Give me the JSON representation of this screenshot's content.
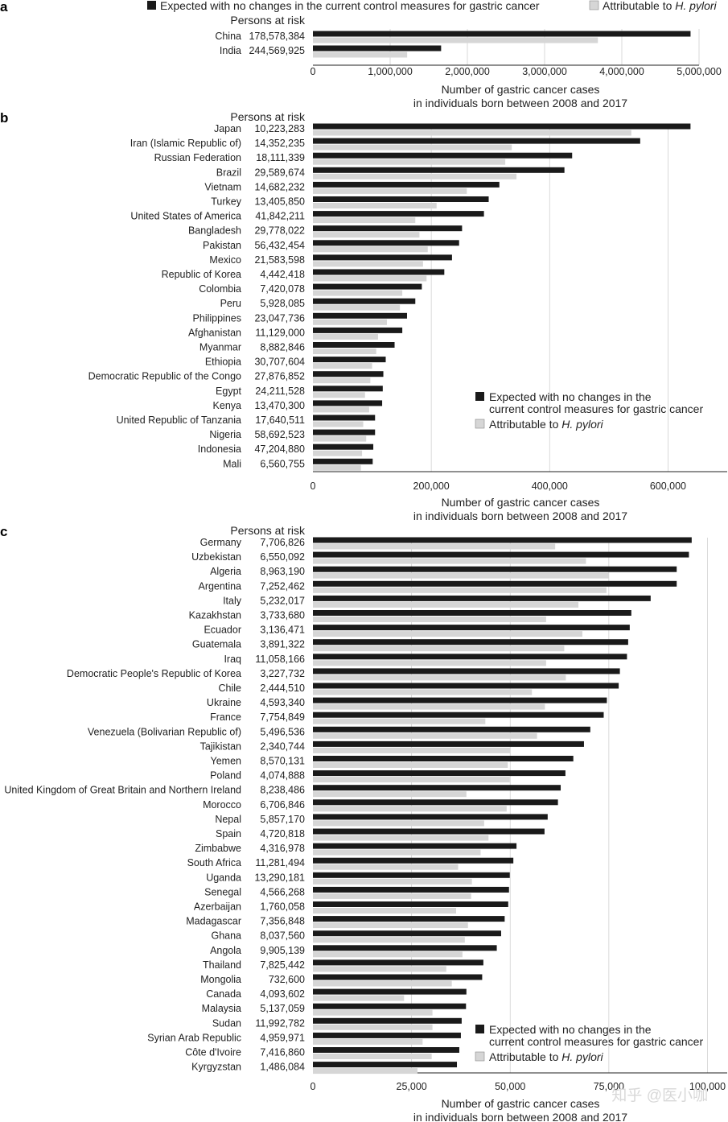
{
  "colors": {
    "expected": "#1a1a1a",
    "hpylori": "#d6d6d6",
    "grid": "#d0d0d0",
    "axis": "#222222"
  },
  "legend": {
    "expected_line1": "Expected with no changes in the",
    "expected_line2": "current control measures for gastric cancer",
    "expected_full": "Expected with no changes in the current control measures for gastric cancer",
    "hpylori_prefix": "Attributable to ",
    "hpylori_italic": "H. pylori"
  },
  "persons_at_risk_title": "Persons at risk",
  "xlabel_line1": "Number of gastric cancer cases",
  "xlabel_line2": "in individuals born between 2008 and 2017",
  "watermark": "知乎 @医小咖",
  "chart_data": [
    {
      "panel": "a",
      "type": "bar",
      "orientation": "horizontal",
      "categories": [
        "China",
        "India"
      ],
      "persons_at_risk": [
        "178,578,384",
        "244,569,925"
      ],
      "series": [
        {
          "name": "Expected with no changes in the current control measures for gastric cancer",
          "values": [
            4890000,
            1660000
          ]
        },
        {
          "name": "Attributable to H. pylori",
          "values": [
            3690000,
            1220000
          ]
        }
      ],
      "xlim": [
        0,
        5000000
      ],
      "xticks": [
        0,
        1000000,
        2000000,
        3000000,
        4000000,
        5000000
      ],
      "xtick_labels": [
        "0",
        "1,000,000",
        "2,000,000",
        "3,000,000",
        "4,000,000",
        "5,000,000"
      ],
      "xlabel": "Number of gastric cancer cases in individuals born between 2008 and 2017",
      "grid": true,
      "legend": "top"
    },
    {
      "panel": "b",
      "type": "bar",
      "orientation": "horizontal",
      "categories": [
        "Japan",
        "Iran (Islamic Republic of)",
        "Russian Federation",
        "Brazil",
        "Vietnam",
        "Turkey",
        "United States of America",
        "Bangladesh",
        "Pakistan",
        "Mexico",
        "Republic of Korea",
        "Colombia",
        "Peru",
        "Philippines",
        "Afghanistan",
        "Myanmar",
        "Ethiopia",
        "Democratic Republic of the Congo",
        "Egypt",
        "Kenya",
        "United Republic of Tanzania",
        "Nigeria",
        "Indonesia",
        "Mali"
      ],
      "persons_at_risk": [
        "10,223,283",
        "14,352,235",
        "18,111,339",
        "29,589,674",
        "14,682,232",
        "13,405,850",
        "41,842,211",
        "29,778,022",
        "56,432,454",
        "21,583,598",
        "4,442,418",
        "7,420,078",
        "5,928,085",
        "23,047,736",
        "11,129,000",
        "8,882,846",
        "30,707,604",
        "27,876,852",
        "24,211,528",
        "13,470,300",
        "17,640,511",
        "58,692,523",
        "47,204,880",
        "6,560,755"
      ],
      "series": [
        {
          "name": "Expected with no changes in the current control measures for gastric cancer",
          "values": [
            638000,
            553000,
            438000,
            425000,
            315000,
            297000,
            289000,
            252000,
            247000,
            235000,
            222000,
            184000,
            173000,
            159000,
            151000,
            138000,
            123000,
            119000,
            118000,
            117000,
            105000,
            105000,
            102000,
            101000
          ]
        },
        {
          "name": "Attributable to H. pylori",
          "values": [
            538000,
            336000,
            325000,
            344000,
            260000,
            209000,
            173000,
            180000,
            194000,
            186000,
            192000,
            151000,
            147000,
            125000,
            110000,
            107000,
            100000,
            97000,
            88000,
            95000,
            85000,
            90000,
            83000,
            81000
          ]
        }
      ],
      "xlim": [
        0,
        700000
      ],
      "xticks": [
        0,
        200000,
        400000,
        600000
      ],
      "xtick_labels": [
        "0",
        "200,000",
        "400,000",
        "600,000"
      ],
      "xlabel": "Number of gastric cancer cases in individuals born between 2008 and 2017",
      "grid": true,
      "legend": "bottom-right"
    },
    {
      "panel": "c",
      "type": "bar",
      "orientation": "horizontal",
      "categories": [
        "Germany",
        "Uzbekistan",
        "Algeria",
        "Argentina",
        "Italy",
        "Kazakhstan",
        "Ecuador",
        "Guatemala",
        "Iraq",
        "Democratic People's Republic of Korea",
        "Chile",
        "Ukraine",
        "France",
        "Venezuela (Bolivarian Republic of)",
        "Tajikistan",
        "Yemen",
        "Poland",
        "United Kingdom of Great Britain and Northern Ireland",
        "Morocco",
        "Nepal",
        "Spain",
        "Zimbabwe",
        "South Africa",
        "Uganda",
        "Senegal",
        "Azerbaijan",
        "Madagascar",
        "Ghana",
        "Angola",
        "Thailand",
        "Mongolia",
        "Canada",
        "Malaysia",
        "Sudan",
        "Syrian Arab Republic",
        "Côte d'Ivoire",
        "Kyrgyzstan"
      ],
      "persons_at_risk": [
        "7,706,826",
        "6,550,092",
        "8,963,190",
        "7,252,462",
        "5,232,017",
        "3,733,680",
        "3,136,471",
        "3,891,322",
        "11,058,166",
        "3,227,732",
        "2,444,510",
        "4,593,340",
        "7,754,849",
        "5,496,536",
        "2,340,744",
        "8,570,131",
        "4,074,888",
        "8,238,486",
        "6,706,846",
        "5,857,170",
        "4,720,818",
        "4,316,978",
        "11,281,494",
        "13,290,181",
        "4,566,268",
        "1,760,058",
        "7,356,848",
        "8,037,560",
        "9,905,139",
        "7,825,442",
        "732,600",
        "4,093,602",
        "5,137,059",
        "11,992,782",
        "4,959,971",
        "7,416,860",
        "1,486,084"
      ],
      "series": [
        {
          "name": "Expected with no changes in the current control measures for gastric cancer",
          "values": [
            96000,
            95300,
            92200,
            92200,
            85600,
            80700,
            80300,
            79900,
            79600,
            77800,
            77500,
            74500,
            73700,
            70300,
            68700,
            66000,
            64000,
            62800,
            62100,
            59500,
            58700,
            51600,
            50800,
            49900,
            49700,
            49500,
            48600,
            47700,
            46600,
            43200,
            42900,
            38900,
            38800,
            37700,
            37500,
            37100,
            36500
          ]
        },
        {
          "name": "Attributable to H. pylori",
          "values": [
            61400,
            69200,
            75000,
            74400,
            67300,
            59100,
            68300,
            63700,
            59100,
            64100,
            55500,
            58800,
            43700,
            56800,
            50000,
            49400,
            49900,
            38900,
            49100,
            43400,
            44500,
            42500,
            36800,
            40300,
            40100,
            36300,
            39300,
            38500,
            37900,
            33800,
            35200,
            23100,
            30300,
            30300,
            27800,
            30100,
            26500
          ]
        }
      ],
      "xlim": [
        0,
        105000
      ],
      "xticks": [
        0,
        25000,
        50000,
        75000,
        100000
      ],
      "xtick_labels": [
        "0",
        "25,000",
        "50,000",
        "75,000",
        "100,000"
      ],
      "xlabel": "Number of gastric cancer cases in individuals born between 2008 and 2017",
      "grid": true,
      "legend": "bottom-right"
    }
  ]
}
